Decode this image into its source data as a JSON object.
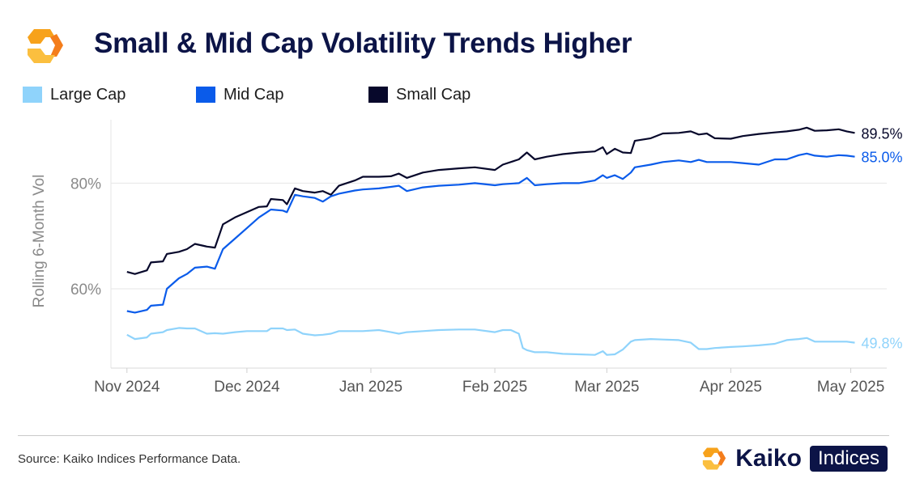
{
  "title": "Small & Mid Cap Volatility Trends Higher",
  "colors": {
    "title": "#0c1447",
    "brand_orange": "#f7a21b",
    "grid": "#e6e6e6",
    "axis_text": "#8a8a8a"
  },
  "legend": [
    {
      "label": "Large Cap",
      "color": "#8fd3fb"
    },
    {
      "label": "Mid Cap",
      "color": "#0a5bea"
    },
    {
      "label": "Small Cap",
      "color": "#07082b"
    }
  ],
  "source": "Source: Kaiko Indices Performance Data.",
  "brand": {
    "name": "Kaiko",
    "tag": "Indices",
    "logo_icon": "kaiko-logo-icon"
  },
  "chart_data": {
    "type": "line",
    "title": "Small & Mid Cap Volatility Trends Higher",
    "xlabel": "",
    "ylabel": "Rolling 6-Month Vol",
    "x_range": [
      "2024-10-28",
      "2025-05-10"
    ],
    "ylim": [
      45,
      92
    ],
    "y_ticks": [
      {
        "value": 60,
        "label": "60%"
      },
      {
        "value": 80,
        "label": "80%"
      }
    ],
    "x_ticks": [
      {
        "date": "2024-11-01",
        "label": "Nov 2024"
      },
      {
        "date": "2024-12-01",
        "label": "Dec 2024"
      },
      {
        "date": "2025-01-01",
        "label": "Jan 2025"
      },
      {
        "date": "2025-02-01",
        "label": "Feb 2025"
      },
      {
        "date": "2025-03-01",
        "label": "Mar 2025"
      },
      {
        "date": "2025-04-01",
        "label": "Apr 2025"
      },
      {
        "date": "2025-05-01",
        "label": "May 2025"
      }
    ],
    "grid": "horizontal",
    "legend_position": "top-left",
    "series": [
      {
        "name": "Small Cap",
        "color": "#07082b",
        "end_label": "89.5%",
        "points": [
          [
            "2024-11-01",
            63.2
          ],
          [
            "2024-11-03",
            62.8
          ],
          [
            "2024-11-06",
            63.5
          ],
          [
            "2024-11-07",
            65.0
          ],
          [
            "2024-11-10",
            65.2
          ],
          [
            "2024-11-11",
            66.6
          ],
          [
            "2024-11-14",
            67.0
          ],
          [
            "2024-11-16",
            67.5
          ],
          [
            "2024-11-18",
            68.5
          ],
          [
            "2024-11-21",
            68.0
          ],
          [
            "2024-11-23",
            67.8
          ],
          [
            "2024-11-25",
            72.2
          ],
          [
            "2024-11-28",
            73.5
          ],
          [
            "2024-12-01",
            74.5
          ],
          [
            "2024-12-04",
            75.5
          ],
          [
            "2024-12-06",
            75.6
          ],
          [
            "2024-12-07",
            77.0
          ],
          [
            "2024-12-10",
            76.8
          ],
          [
            "2024-12-11",
            76.0
          ],
          [
            "2024-12-13",
            79.0
          ],
          [
            "2024-12-15",
            78.5
          ],
          [
            "2024-12-18",
            78.2
          ],
          [
            "2024-12-20",
            78.5
          ],
          [
            "2024-12-22",
            77.8
          ],
          [
            "2024-12-24",
            79.5
          ],
          [
            "2024-12-28",
            80.5
          ],
          [
            "2024-12-30",
            81.2
          ],
          [
            "2025-01-03",
            81.2
          ],
          [
            "2025-01-06",
            81.3
          ],
          [
            "2025-01-08",
            81.8
          ],
          [
            "2025-01-10",
            81.0
          ],
          [
            "2025-01-14",
            82.0
          ],
          [
            "2025-01-18",
            82.5
          ],
          [
            "2025-01-23",
            82.8
          ],
          [
            "2025-01-27",
            83.0
          ],
          [
            "2025-02-01",
            82.5
          ],
          [
            "2025-02-03",
            83.5
          ],
          [
            "2025-02-07",
            84.5
          ],
          [
            "2025-02-09",
            85.8
          ],
          [
            "2025-02-11",
            84.5
          ],
          [
            "2025-02-14",
            85.0
          ],
          [
            "2025-02-18",
            85.5
          ],
          [
            "2025-02-22",
            85.8
          ],
          [
            "2025-02-26",
            86.0
          ],
          [
            "2025-02-28",
            86.8
          ],
          [
            "2025-03-01",
            85.5
          ],
          [
            "2025-03-03",
            86.5
          ],
          [
            "2025-03-05",
            85.8
          ],
          [
            "2025-03-07",
            85.7
          ],
          [
            "2025-03-08",
            88.0
          ],
          [
            "2025-03-12",
            88.5
          ],
          [
            "2025-03-15",
            89.4
          ],
          [
            "2025-03-19",
            89.5
          ],
          [
            "2025-03-22",
            89.8
          ],
          [
            "2025-03-24",
            89.2
          ],
          [
            "2025-03-26",
            89.4
          ],
          [
            "2025-03-28",
            88.5
          ],
          [
            "2025-04-01",
            88.4
          ],
          [
            "2025-04-04",
            88.9
          ],
          [
            "2025-04-08",
            89.3
          ],
          [
            "2025-04-12",
            89.6
          ],
          [
            "2025-04-15",
            89.8
          ],
          [
            "2025-04-18",
            90.1
          ],
          [
            "2025-04-20",
            90.5
          ],
          [
            "2025-04-22",
            89.9
          ],
          [
            "2025-04-25",
            90.0
          ],
          [
            "2025-04-28",
            90.2
          ],
          [
            "2025-04-30",
            89.8
          ],
          [
            "2025-05-02",
            89.5
          ]
        ]
      },
      {
        "name": "Mid Cap",
        "color": "#0a5bea",
        "end_label": "85.0%",
        "points": [
          [
            "2024-11-01",
            55.8
          ],
          [
            "2024-11-03",
            55.5
          ],
          [
            "2024-11-06",
            56.0
          ],
          [
            "2024-11-07",
            56.8
          ],
          [
            "2024-11-10",
            57.0
          ],
          [
            "2024-11-11",
            60.0
          ],
          [
            "2024-11-14",
            62.0
          ],
          [
            "2024-11-16",
            62.8
          ],
          [
            "2024-11-18",
            64.0
          ],
          [
            "2024-11-21",
            64.2
          ],
          [
            "2024-11-23",
            63.8
          ],
          [
            "2024-11-25",
            67.5
          ],
          [
            "2024-11-28",
            69.5
          ],
          [
            "2024-12-01",
            71.5
          ],
          [
            "2024-12-04",
            73.5
          ],
          [
            "2024-12-06",
            74.5
          ],
          [
            "2024-12-07",
            75.0
          ],
          [
            "2024-12-10",
            74.8
          ],
          [
            "2024-12-11",
            74.5
          ],
          [
            "2024-12-13",
            77.8
          ],
          [
            "2024-12-15",
            77.5
          ],
          [
            "2024-12-18",
            77.2
          ],
          [
            "2024-12-20",
            76.5
          ],
          [
            "2024-12-22",
            77.5
          ],
          [
            "2024-12-24",
            78.0
          ],
          [
            "2024-12-28",
            78.6
          ],
          [
            "2024-12-30",
            78.8
          ],
          [
            "2025-01-03",
            79.0
          ],
          [
            "2025-01-06",
            79.3
          ],
          [
            "2025-01-08",
            79.5
          ],
          [
            "2025-01-10",
            78.5
          ],
          [
            "2025-01-14",
            79.2
          ],
          [
            "2025-01-18",
            79.5
          ],
          [
            "2025-01-23",
            79.7
          ],
          [
            "2025-01-27",
            80.0
          ],
          [
            "2025-02-01",
            79.6
          ],
          [
            "2025-02-03",
            79.8
          ],
          [
            "2025-02-07",
            80.0
          ],
          [
            "2025-02-09",
            81.0
          ],
          [
            "2025-02-11",
            79.6
          ],
          [
            "2025-02-14",
            79.8
          ],
          [
            "2025-02-18",
            80.0
          ],
          [
            "2025-02-22",
            80.0
          ],
          [
            "2025-02-26",
            80.5
          ],
          [
            "2025-02-28",
            81.5
          ],
          [
            "2025-03-01",
            81.0
          ],
          [
            "2025-03-03",
            81.5
          ],
          [
            "2025-03-05",
            80.8
          ],
          [
            "2025-03-07",
            82.0
          ],
          [
            "2025-03-08",
            83.0
          ],
          [
            "2025-03-12",
            83.5
          ],
          [
            "2025-03-15",
            84.0
          ],
          [
            "2025-03-19",
            84.3
          ],
          [
            "2025-03-22",
            84.0
          ],
          [
            "2025-03-24",
            84.4
          ],
          [
            "2025-03-26",
            84.0
          ],
          [
            "2025-03-28",
            84.0
          ],
          [
            "2025-04-01",
            84.0
          ],
          [
            "2025-04-04",
            83.8
          ],
          [
            "2025-04-08",
            83.5
          ],
          [
            "2025-04-12",
            84.5
          ],
          [
            "2025-04-15",
            84.5
          ],
          [
            "2025-04-18",
            85.3
          ],
          [
            "2025-04-20",
            85.6
          ],
          [
            "2025-04-22",
            85.2
          ],
          [
            "2025-04-25",
            85.0
          ],
          [
            "2025-04-28",
            85.3
          ],
          [
            "2025-04-30",
            85.2
          ],
          [
            "2025-05-02",
            85.0
          ]
        ]
      },
      {
        "name": "Large Cap",
        "color": "#8fd3fb",
        "end_label": "49.8%",
        "points": [
          [
            "2024-11-01",
            51.3
          ],
          [
            "2024-11-03",
            50.5
          ],
          [
            "2024-11-06",
            50.8
          ],
          [
            "2024-11-07",
            51.5
          ],
          [
            "2024-11-10",
            51.8
          ],
          [
            "2024-11-11",
            52.2
          ],
          [
            "2024-11-14",
            52.6
          ],
          [
            "2024-11-16",
            52.5
          ],
          [
            "2024-11-18",
            52.5
          ],
          [
            "2024-11-21",
            51.5
          ],
          [
            "2024-11-23",
            51.6
          ],
          [
            "2024-11-25",
            51.5
          ],
          [
            "2024-11-28",
            51.8
          ],
          [
            "2024-12-01",
            52.0
          ],
          [
            "2024-12-04",
            52.0
          ],
          [
            "2024-12-06",
            52.0
          ],
          [
            "2024-12-07",
            52.5
          ],
          [
            "2024-12-10",
            52.5
          ],
          [
            "2024-12-11",
            52.2
          ],
          [
            "2024-12-13",
            52.3
          ],
          [
            "2024-12-15",
            51.5
          ],
          [
            "2024-12-18",
            51.2
          ],
          [
            "2024-12-20",
            51.3
          ],
          [
            "2024-12-22",
            51.5
          ],
          [
            "2024-12-24",
            52.0
          ],
          [
            "2024-12-28",
            52.0
          ],
          [
            "2024-12-30",
            52.0
          ],
          [
            "2025-01-03",
            52.2
          ],
          [
            "2025-01-06",
            51.8
          ],
          [
            "2025-01-08",
            51.5
          ],
          [
            "2025-01-10",
            51.8
          ],
          [
            "2025-01-14",
            52.0
          ],
          [
            "2025-01-18",
            52.2
          ],
          [
            "2025-01-23",
            52.3
          ],
          [
            "2025-01-27",
            52.3
          ],
          [
            "2025-02-01",
            51.8
          ],
          [
            "2025-02-03",
            52.2
          ],
          [
            "2025-02-05",
            52.2
          ],
          [
            "2025-02-07",
            51.5
          ],
          [
            "2025-02-08",
            48.8
          ],
          [
            "2025-02-09",
            48.4
          ],
          [
            "2025-02-11",
            48.0
          ],
          [
            "2025-02-14",
            48.0
          ],
          [
            "2025-02-18",
            47.7
          ],
          [
            "2025-02-22",
            47.6
          ],
          [
            "2025-02-26",
            47.5
          ],
          [
            "2025-02-28",
            48.2
          ],
          [
            "2025-03-01",
            47.5
          ],
          [
            "2025-03-03",
            47.6
          ],
          [
            "2025-03-05",
            48.5
          ],
          [
            "2025-03-07",
            50.0
          ],
          [
            "2025-03-08",
            50.3
          ],
          [
            "2025-03-12",
            50.5
          ],
          [
            "2025-03-15",
            50.4
          ],
          [
            "2025-03-19",
            50.3
          ],
          [
            "2025-03-22",
            49.8
          ],
          [
            "2025-03-24",
            48.6
          ],
          [
            "2025-03-26",
            48.6
          ],
          [
            "2025-03-28",
            48.8
          ],
          [
            "2025-04-01",
            49.0
          ],
          [
            "2025-04-04",
            49.1
          ],
          [
            "2025-04-08",
            49.3
          ],
          [
            "2025-04-12",
            49.6
          ],
          [
            "2025-04-15",
            50.3
          ],
          [
            "2025-04-18",
            50.5
          ],
          [
            "2025-04-20",
            50.7
          ],
          [
            "2025-04-22",
            50.0
          ],
          [
            "2025-04-25",
            50.0
          ],
          [
            "2025-04-28",
            50.0
          ],
          [
            "2025-04-30",
            50.0
          ],
          [
            "2025-05-02",
            49.8
          ]
        ]
      }
    ]
  }
}
